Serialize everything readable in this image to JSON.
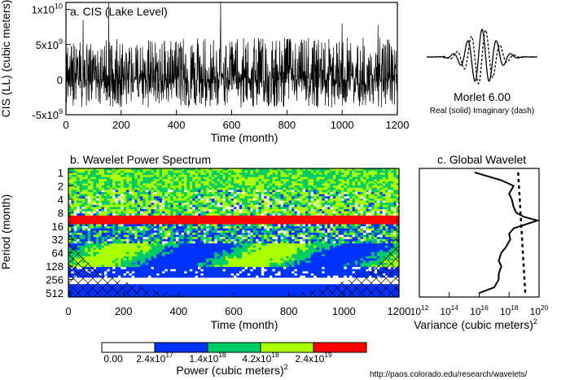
{
  "chart_data": [
    {
      "type": "line",
      "title": "a. CIS (Lake Level)",
      "xlabel": "Time (month)",
      "ylabel": "CIS (LL) (cubic meters)",
      "xlim": [
        0,
        1200
      ],
      "ylim": [
        -5000000000.0,
        11000000000.0
      ],
      "x_ticks": [
        "0",
        "200",
        "400",
        "600",
        "800",
        "1000",
        "1200"
      ],
      "y_ticks": [
        {
          "base": "-5x10",
          "exp": "9",
          "value": -5000000000.0
        },
        {
          "base": "0",
          "exp": "",
          "value": 0
        },
        {
          "base": "5x10",
          "exp": "9",
          "value": 5000000000.0
        },
        {
          "base": "1x10",
          "exp": "10",
          "value": 10000000000.0
        }
      ],
      "series": [
        {
          "n_points": 1200,
          "typical_range": [
            -4000000000.0,
            6000000000.0
          ],
          "peaks": [
            {
              "x": 155,
              "y": 11000000000.0
            },
            {
              "x": 560,
              "y": 11000000000.0
            },
            {
              "x": 62,
              "y": 8500000000.0
            },
            {
              "x": 1000,
              "y": 8000000000.0
            },
            {
              "x": 1130,
              "y": 7800000000.0
            }
          ]
        }
      ]
    },
    {
      "type": "line",
      "title": "Morlet 6.00",
      "subtitle": "Real (solid)  Imaginary (dash)",
      "series": [
        {
          "style": "solid",
          "function": "exp(-t^2/2)*cos(6t)"
        },
        {
          "style": "dash",
          "function": "exp(-t^2/2)*sin(6t)"
        }
      ]
    },
    {
      "type": "heatmap",
      "title": "b. Wavelet Power Spectrum",
      "xlabel": "Time (month)",
      "ylabel": "Period (month)",
      "xlim": [
        0,
        1200
      ],
      "y_scale": "log2",
      "ylim": [
        1,
        512
      ],
      "x_ticks": [
        "0",
        "200",
        "400",
        "600",
        "800",
        "1000",
        "1200"
      ],
      "y_ticks": [
        "1",
        "2",
        "4",
        "8",
        "16",
        "32",
        "64",
        "128",
        "256",
        "512"
      ],
      "y_tick_values": [
        1,
        2,
        4,
        8,
        16,
        32,
        64,
        128,
        256,
        512
      ],
      "dominant_band": {
        "period_low": 9,
        "period_high": 15,
        "level": "2.4x10^19",
        "color": "#ff0000"
      },
      "cone_of_influence": true,
      "colorbar": {
        "label": "Power (cubic meters)",
        "label_exp": "2",
        "levels": [
          {
            "base": "0.00",
            "exp": ""
          },
          {
            "base": "2.4x10",
            "exp": "17"
          },
          {
            "base": "1.4x10",
            "exp": "18"
          },
          {
            "base": "4.2x10",
            "exp": "18"
          },
          {
            "base": "2.4x10",
            "exp": "19"
          }
        ],
        "colors": [
          "#ffffff",
          "#0033ff",
          "#00cc66",
          "#aaff00",
          "#ff0000"
        ]
      }
    },
    {
      "type": "line",
      "title": "c. Global Wavelet",
      "xlabel": "Variance (cubic meters)",
      "xlabel_exp": "2",
      "x_scale": "log10",
      "xlim": [
        1000000000000.0,
        1e+20
      ],
      "x_ticks": [
        {
          "base": "10",
          "exp": "12",
          "value": 1000000000000.0
        },
        {
          "base": "10",
          "exp": "14",
          "value": 100000000000000.0
        },
        {
          "base": "10",
          "exp": "16",
          "value": 1e+16
        },
        {
          "base": "10",
          "exp": "18",
          "value": 1e+18
        },
        {
          "base": "10",
          "exp": "20",
          "value": 1e+20
        }
      ],
      "series": [
        {
          "style": "solid",
          "points": [
            {
              "period": 1,
              "variance": 5000000000000000.0
            },
            {
              "period": 1.5,
              "variance": 3e+17
            },
            {
              "period": 2,
              "variance": 2e+18
            },
            {
              "period": 3,
              "variance": 1e+18
            },
            {
              "period": 4,
              "variance": 1.5e+18
            },
            {
              "period": 6,
              "variance": 2e+18
            },
            {
              "period": 8,
              "variance": 3e+18
            },
            {
              "period": 10,
              "variance": 1e+19
            },
            {
              "period": 12,
              "variance": 8e+19
            },
            {
              "period": 14,
              "variance": 2e+19
            },
            {
              "period": 18,
              "variance": 2e+18
            },
            {
              "period": 24,
              "variance": 1e+18
            },
            {
              "period": 32,
              "variance": 1.2e+18
            },
            {
              "period": 48,
              "variance": 6e+17
            },
            {
              "period": 64,
              "variance": 3e+17
            },
            {
              "period": 96,
              "variance": 2e+17
            },
            {
              "period": 128,
              "variance": 3e+17
            },
            {
              "period": 192,
              "variance": 2e+17
            },
            {
              "period": 256,
              "variance": 2e+17
            },
            {
              "period": 384,
              "variance": 1e+17
            },
            {
              "period": 512,
              "variance": 1e+16
            }
          ]
        },
        {
          "style": "dash",
          "points": [
            {
              "period": 1,
              "variance": 4e+18
            },
            {
              "period": 512,
              "variance": 1.2e+19
            }
          ]
        }
      ]
    }
  ],
  "footer": {
    "url": "http://paos.colorado.edu/research/wavelets/"
  }
}
